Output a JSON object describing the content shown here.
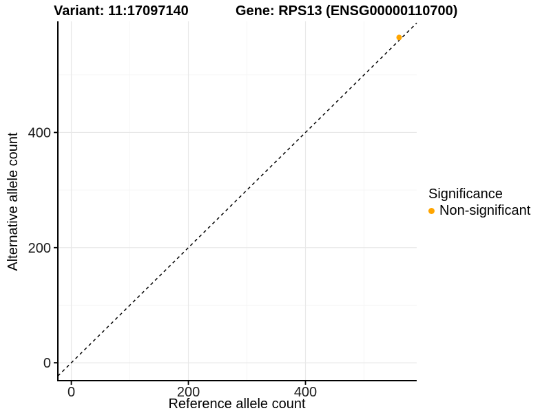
{
  "chart_data": {
    "type": "scatter",
    "title_left": "Variant: 11:17097140",
    "title_right": "Gene: RPS13 (ENSG00000110700)",
    "xlabel": "Reference allele count",
    "ylabel": "Alternative allele count",
    "xlim": [
      -23,
      590
    ],
    "ylim": [
      -31,
      593
    ],
    "x_ticks": {
      "major": [
        0,
        200,
        400
      ],
      "minor": [
        100,
        300,
        500
      ]
    },
    "y_ticks": {
      "major": [
        0,
        200,
        400
      ],
      "minor": [
        100,
        300,
        500
      ]
    },
    "grid": "major+minor",
    "legend_position": "right",
    "legend_title": "Significance",
    "identity_line": {
      "equation": "y = x",
      "style": "dashed",
      "color": "#000000"
    },
    "series": [
      {
        "name": "Non-significant",
        "color": "#FFA500",
        "marker": "circle",
        "points": [
          [
            560,
            565
          ]
        ]
      }
    ]
  },
  "colors": {
    "background": "#FFFFFF",
    "grid_major": "#E8E8E8",
    "grid_minor": "#F5F5F5",
    "axis_line": "#000000",
    "tick_label": "#1A1A1A"
  }
}
